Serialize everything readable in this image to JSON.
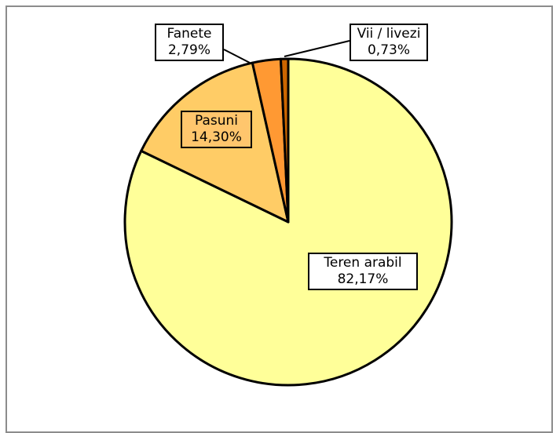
{
  "chart_data": {
    "type": "pie",
    "slices": [
      {
        "label": "Teren arabil",
        "value_label": "82,17%",
        "value": 82.17,
        "color": "#ffff99"
      },
      {
        "label": "Pasuni",
        "value_label": "14,30%",
        "value": 14.3,
        "color": "#ffcc66"
      },
      {
        "label": "Fanete",
        "value_label": "2,79%",
        "value": 2.79,
        "color": "#ff9933"
      },
      {
        "label": "Vii / livezi",
        "value_label": "0,73%",
        "value": 0.73,
        "color": "#cc6600"
      }
    ],
    "start_angle_deg": 0,
    "direction": "clockwise",
    "legend": "none",
    "data_labels": "callout-boxes"
  }
}
